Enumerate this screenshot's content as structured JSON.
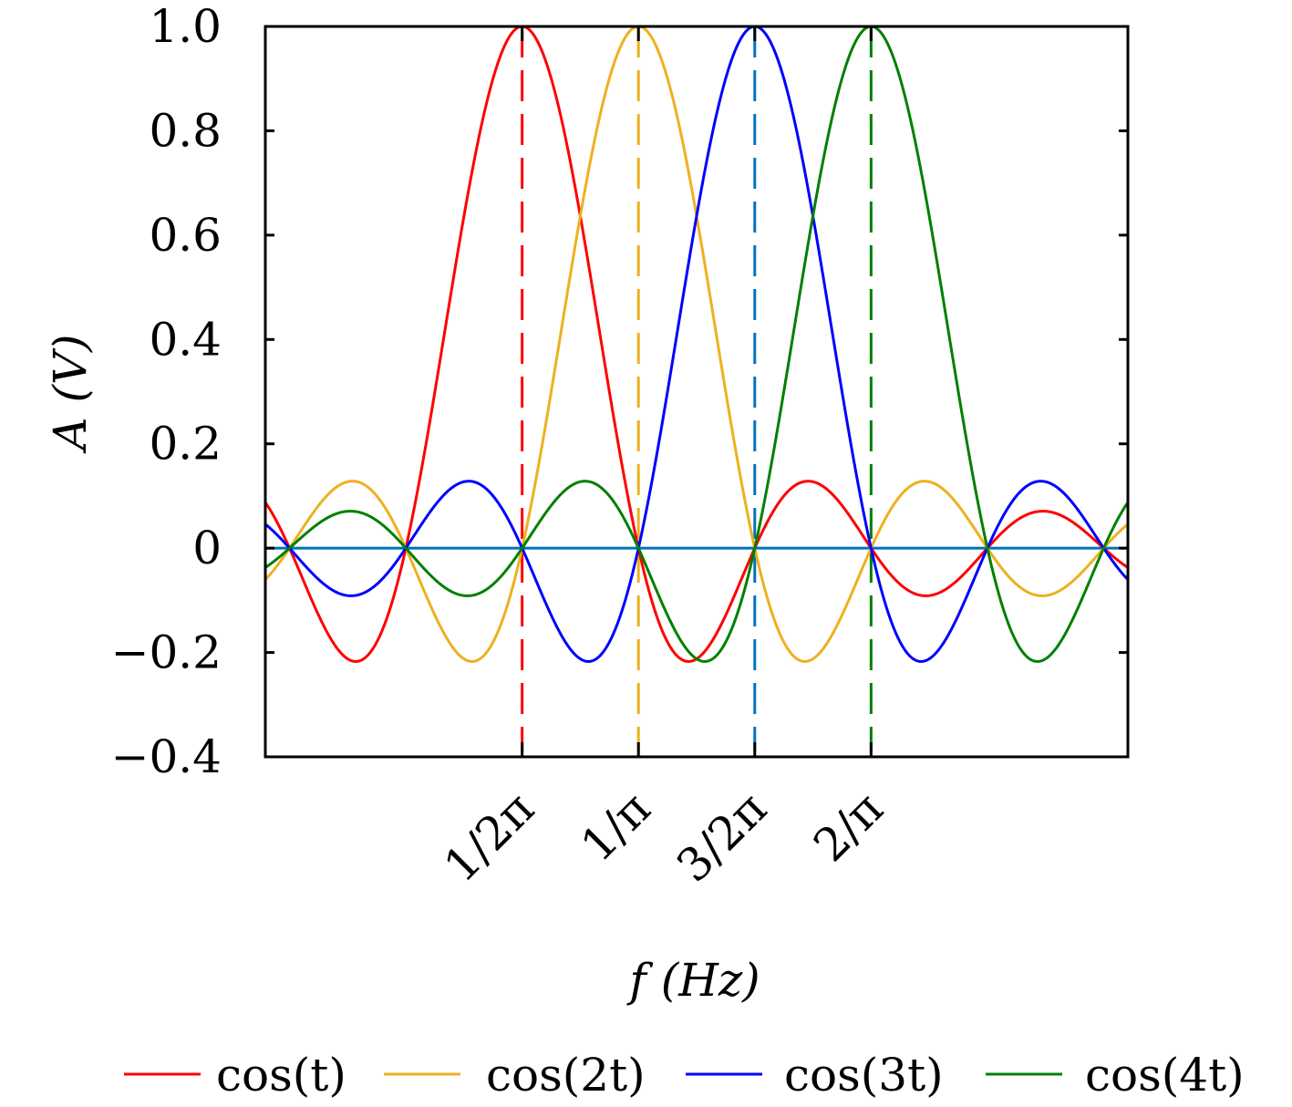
{
  "chart_data": {
    "type": "line",
    "xlabel": "f (Hz)",
    "ylabel": "A (V)",
    "xlim": [
      -2.208,
      5.208
    ],
    "ylim": [
      -0.4,
      1.0
    ],
    "yticks": [
      {
        "value": -0.4,
        "label": "−0.4"
      },
      {
        "value": -0.2,
        "label": "−0.2"
      },
      {
        "value": 0,
        "label": "0"
      },
      {
        "value": 0.2,
        "label": "0.2"
      },
      {
        "value": 0.4,
        "label": "0.4"
      },
      {
        "value": 0.6,
        "label": "0.6"
      },
      {
        "value": 0.8,
        "label": "0.8"
      },
      {
        "value": 1.0,
        "label": "1.0"
      }
    ],
    "xticks": [
      {
        "value": 0,
        "label": "1/2π"
      },
      {
        "value": 1,
        "label": "1/π"
      },
      {
        "value": 2,
        "label": "3/2π"
      },
      {
        "value": 3,
        "label": "2/π"
      }
    ],
    "series": [
      {
        "name": "cos(t)",
        "color": "#ff0000",
        "center": 0
      },
      {
        "name": "cos(2t)",
        "color": "#edb120",
        "center": 1
      },
      {
        "name": "cos(3t)",
        "color": "#0000ff",
        "center": 2
      },
      {
        "name": "cos(4t)",
        "color": "#008000",
        "center": 3
      }
    ],
    "zero_line_color": "#0072bd",
    "marker_line_colors": [
      "#ff0000",
      "#edb120",
      "#0072bd",
      "#008000"
    ],
    "grid": false,
    "legend_position": "bottom"
  }
}
